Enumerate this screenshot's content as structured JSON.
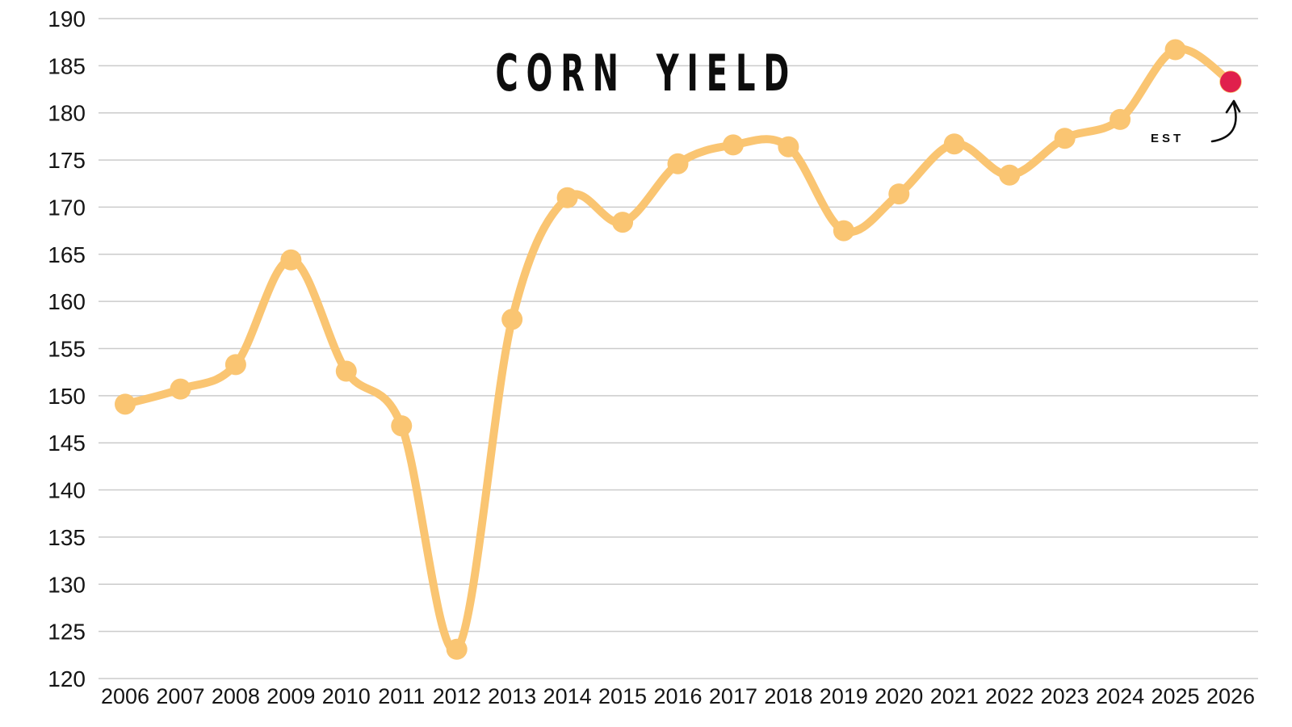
{
  "title": "CORN YIELD",
  "annotation": {
    "est_label": "EST"
  },
  "chart_data": {
    "type": "line",
    "title": "CORN YIELD",
    "categories": [
      "2006",
      "2007",
      "2008",
      "2009",
      "2010",
      "2011",
      "2012",
      "2013",
      "2014",
      "2015",
      "2016",
      "2017",
      "2018",
      "2019",
      "2020",
      "2021",
      "2022",
      "2023",
      "2024",
      "2025",
      "2026"
    ],
    "values": [
      149.1,
      150.7,
      153.3,
      164.4,
      152.6,
      146.8,
      123.1,
      158.1,
      171.0,
      168.4,
      174.6,
      176.6,
      176.4,
      167.5,
      171.4,
      176.7,
      173.4,
      177.3,
      179.3,
      186.7,
      183.3
    ],
    "xlabel": "",
    "ylabel": "",
    "ylim": [
      120,
      190
    ],
    "ytick_step": 5,
    "yticks": [
      120,
      125,
      130,
      135,
      140,
      145,
      150,
      155,
      160,
      165,
      170,
      175,
      180,
      185,
      190
    ],
    "grid": "horizontal gridlines only, no vertical grid, no axis lines",
    "legend_position": "none",
    "annotations": [
      {
        "text": "EST",
        "points_to_year": "2026",
        "note": "final 2026 point is an estimate, highlighted red with curved arrow"
      }
    ],
    "colors": {
      "line": "#FAC572",
      "marker": "#FAC572",
      "estimate_marker": "#E0204C",
      "gridline": "#CBCBCB",
      "axis_text": "#151515",
      "title_text": "#0d0d0d",
      "background": "#ffffff"
    },
    "estimate_point": {
      "category": "2026",
      "value": 183.3,
      "label": "EST"
    }
  }
}
